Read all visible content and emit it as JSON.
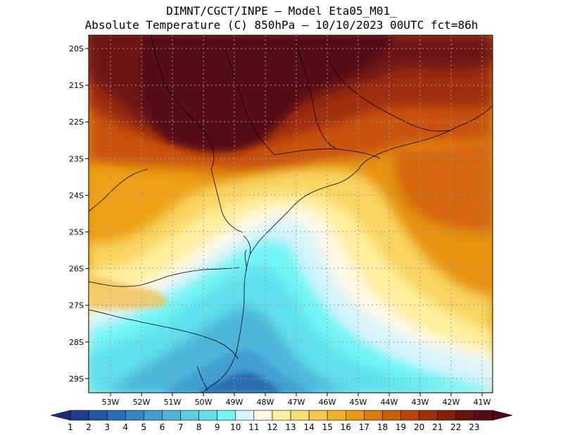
{
  "header": {
    "line1": "DIMNT/CGCT/INPE –  Model Eta05_M01_",
    "line2": "Absolute Temperature (C) 850hPa –  10/10/2023 00UTC fct=86h"
  },
  "axes": {
    "lat_labels": [
      "20S",
      "21S",
      "22S",
      "23S",
      "24S",
      "25S",
      "26S",
      "27S",
      "28S",
      "29S"
    ],
    "lon_labels": [
      "53W",
      "52W",
      "51W",
      "50W",
      "49W",
      "48W",
      "47W",
      "46W",
      "45W",
      "44W",
      "43W",
      "42W",
      "41W"
    ]
  },
  "colorbar": {
    "labels": [
      "1",
      "2",
      "3",
      "4",
      "5",
      "6",
      "7",
      "8",
      "9",
      "10",
      "11",
      "12",
      "13",
      "14",
      "15",
      "16",
      "17",
      "18",
      "19",
      "20",
      "21",
      "22",
      "23"
    ],
    "colors": [
      "#1f3d8f",
      "#2456a3",
      "#2a6db4",
      "#3586c3",
      "#3f9fd0",
      "#4bb6da",
      "#57cde2",
      "#5fe0eb",
      "#72f5f5",
      "#d6f4fa",
      "#fff8e6",
      "#ffef9e",
      "#fbde74",
      "#f6c94d",
      "#f1b225",
      "#ea9810",
      "#dd7a09",
      "#cd5e06",
      "#b94405",
      "#a02f09",
      "#86200d",
      "#6a1410",
      "#560d14"
    ],
    "edge_low": "#1a2f78",
    "edge_high": "#4b0a10"
  },
  "map": {
    "ocean_warm_core": "#5a1216",
    "grid_color": "#9a9a9a",
    "coast_color": "#000000"
  }
}
